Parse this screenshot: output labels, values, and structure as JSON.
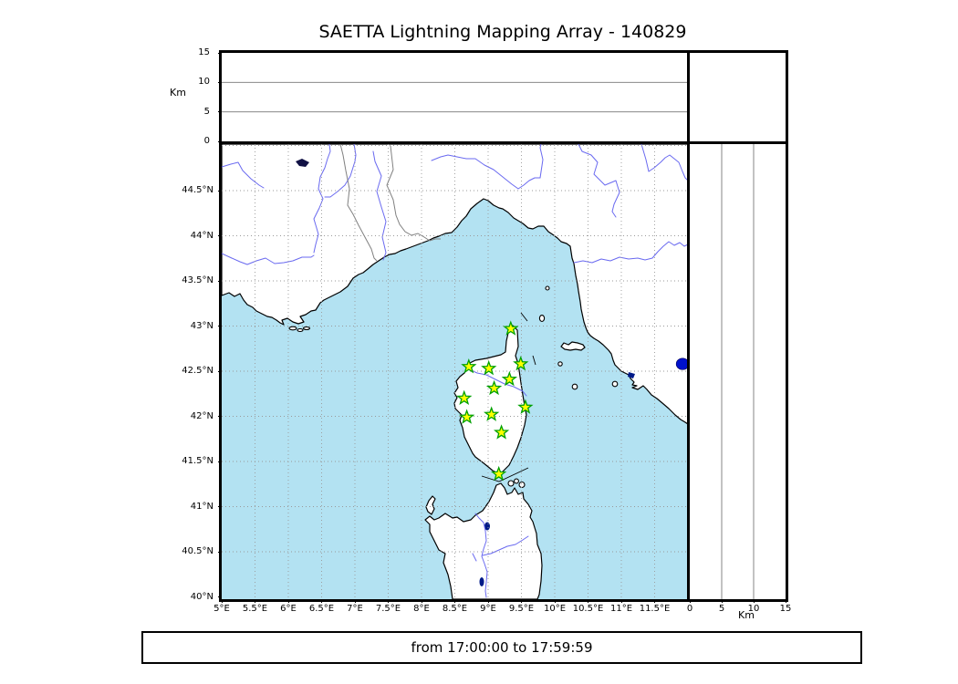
{
  "title": "SAETTA Lightning Mapping Array - 140829",
  "footer": "from 17:00:00 to 17:59:59",
  "top_panel": {
    "ylabel": "Km",
    "ticks": [
      "0",
      "5",
      "10",
      "15"
    ],
    "tick_values": [
      0,
      5,
      10,
      15
    ],
    "max": 15
  },
  "right_panel": {
    "xlabel": "Km",
    "ticks": [
      "0",
      "5",
      "10",
      "15"
    ],
    "tick_values": [
      0,
      5,
      10,
      15
    ],
    "max": 15
  },
  "map": {
    "lon_tick_labels": [
      "5°E",
      "5.5°E",
      "6°E",
      "6.5°E",
      "7°E",
      "7.5°E",
      "8°E",
      "8.5°E",
      "9°E",
      "9.5°E",
      "10°E",
      "10.5°E",
      "11°E",
      "11.5°E"
    ],
    "lon_tick_values": [
      5,
      5.5,
      6,
      6.5,
      7,
      7.5,
      8,
      8.5,
      9,
      9.5,
      10,
      10.5,
      11,
      11.5
    ],
    "lat_tick_labels": [
      "40°N",
      "40.5°N",
      "41°N",
      "41.5°N",
      "42°N",
      "42.5°N",
      "43°N",
      "43.5°N",
      "44°N",
      "44.5°N"
    ],
    "lat_tick_values": [
      40,
      40.5,
      41,
      41.5,
      42,
      42.5,
      43,
      43.5,
      44,
      44.5
    ],
    "lon_range": [
      5,
      12
    ],
    "lat_range": [
      40,
      45.04
    ],
    "grid_lon_values": [
      5.5,
      6,
      6.5,
      7,
      7.5,
      8,
      8.5,
      9,
      9.5,
      10,
      10.5,
      11,
      11.5
    ],
    "grid_lat_values": [
      40.5,
      41,
      41.5,
      42,
      42.5,
      43,
      43.5,
      44,
      44.5,
      45
    ]
  },
  "stations": [
    {
      "lon": 9.34,
      "lat": 42.97
    },
    {
      "lon": 8.71,
      "lat": 42.55
    },
    {
      "lon": 9.01,
      "lat": 42.53
    },
    {
      "lon": 9.49,
      "lat": 42.58
    },
    {
      "lon": 9.32,
      "lat": 42.41
    },
    {
      "lon": 9.09,
      "lat": 42.31
    },
    {
      "lon": 8.64,
      "lat": 42.2
    },
    {
      "lon": 9.56,
      "lat": 42.1
    },
    {
      "lon": 9.05,
      "lat": 42.02
    },
    {
      "lon": 8.68,
      "lat": 41.99
    },
    {
      "lon": 9.2,
      "lat": 41.82
    },
    {
      "lon": 9.16,
      "lat": 41.36
    }
  ],
  "detection": {
    "lon": 11.92,
    "lat": 42.58
  },
  "colors": {
    "sea": "#b3e2f2",
    "land": "#ffffff",
    "coast": "#000000",
    "river": "#6a6af0",
    "country_border": "#808080",
    "grid": "#999999",
    "station_fill": "#ffff00",
    "station_edge": "#00a000",
    "detection": "#0011cc",
    "lake": "#001a88"
  }
}
